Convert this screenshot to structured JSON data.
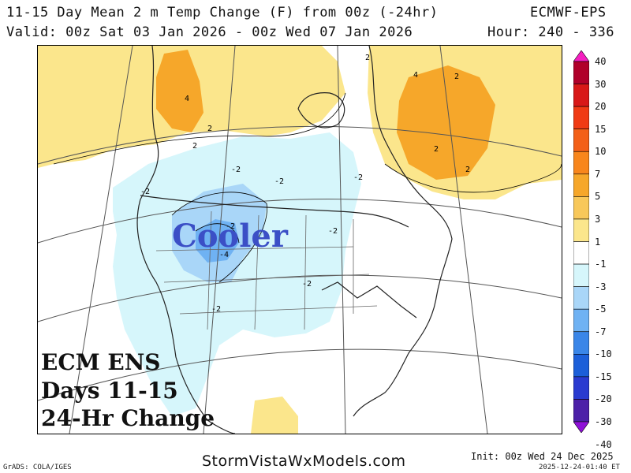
{
  "header": {
    "title": "11-15 Day Mean 2 m Temp Change (F) from 00z (-24hr)",
    "model": "ECMWF-EPS",
    "valid": "Valid: 00z Sat 03 Jan 2026 - 00z Wed 07 Jan 2026",
    "hour": "Hour: 240 - 336"
  },
  "map": {
    "annotation": "Cooler",
    "info_lines": [
      "ECM ENS",
      "Days 11-15",
      "24-Hr Change"
    ],
    "contour_labels": [
      "2",
      "4",
      "2",
      "-2",
      "-2",
      "-2",
      "-2",
      "-4",
      "-2",
      "-2",
      "-2",
      "-2",
      "2",
      "4",
      "2",
      "2",
      "2"
    ]
  },
  "colorbar": {
    "labels": [
      "40",
      "30",
      "20",
      "15",
      "10",
      "7",
      "5",
      "3",
      "1",
      "-1",
      "-3",
      "-5",
      "-7",
      "-10",
      "-15",
      "-20",
      "-30",
      "-40"
    ],
    "colors": [
      "#f51ec0",
      "#b0002a",
      "#d81818",
      "#f03a14",
      "#f36018",
      "#f8861c",
      "#f6a72a",
      "#f8c85a",
      "#fbe68c",
      "#ffffff",
      "#d6f6fb",
      "#a9d6f8",
      "#6fb2f3",
      "#3a86e8",
      "#1c5fd9",
      "#2a3bd0",
      "#4c20a8",
      "#8f10d8"
    ]
  },
  "footer": {
    "grads": "GrADS: COLA/IGES",
    "site": "StormVistaWxModels.com",
    "init": "Init: 00z Wed 24 Dec 2025",
    "timestamp": "2025-12-24-01:40 ET"
  }
}
